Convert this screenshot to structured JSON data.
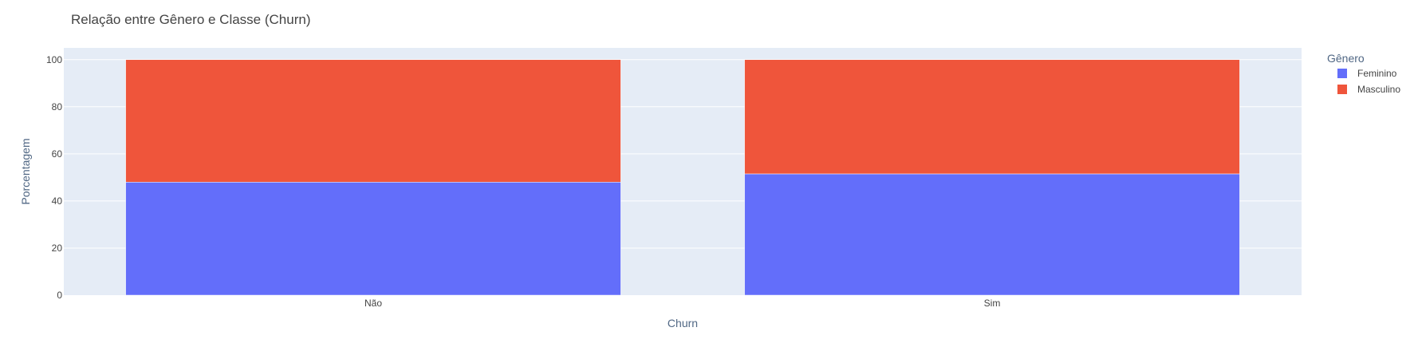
{
  "chart_data": {
    "type": "bar",
    "barmode": "stack",
    "title": "Relação entre Gênero e Classe (Churn)",
    "xlabel": "Churn",
    "ylabel": "Porcentagem",
    "categories": [
      "Não",
      "Sim"
    ],
    "series": [
      {
        "name": "Feminino",
        "values": [
          48,
          51.5
        ],
        "color": "#636efa"
      },
      {
        "name": "Masculino",
        "values": [
          52,
          48.5
        ],
        "color": "#ef553b"
      }
    ],
    "ylim": [
      0,
      105
    ],
    "yticks": [
      "0",
      "20",
      "40",
      "60",
      "80",
      "100"
    ],
    "grid": true,
    "legend_title": "Gênero",
    "legend_position": "top-right",
    "plot_background": "#e5ecf6"
  }
}
